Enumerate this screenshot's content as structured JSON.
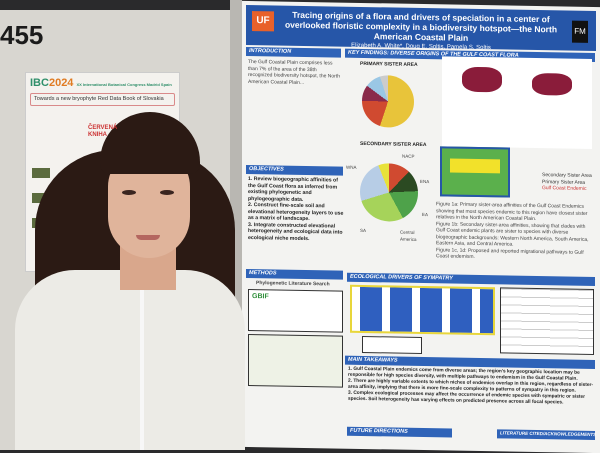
{
  "left_board": {
    "number": "455"
  },
  "ibc_poster": {
    "logo": "IBC",
    "year": "2024",
    "subtitle": "XX International Botanical Congress Madrid Spain",
    "title": "Towards a new bryophyte Red Data Book of Slovakia",
    "side_label": "ČERVENÁ KNIHA"
  },
  "poster": {
    "logo_left": "UF",
    "logo_right": "FM",
    "title": "Tracing origins of a flora and drivers of speciation in a center of overlooked floristic complexity in a biodiversity hotspot—the North American Coastal Plain",
    "authors": "Elizabeth A. White*, Doug E. Soltis, Pamela S. Soltis",
    "sections": {
      "introduction": "INTRODUCTION",
      "key_findings": "KEY FINDINGS: DIVERSE ORIGINS OF THE GULF COAST FLORA",
      "primary": "PRIMARY SISTER AREA",
      "secondary": "SECONDARY SISTER AREA",
      "objectives": "OBJECTIVES",
      "methods": "METHODS",
      "phylo_search": "Phylogenetic Literature Search",
      "ecological": "ECOLOGICAL DRIVERS OF SYMPATRY",
      "main_takeaways": "MAIN TAKEAWAYS",
      "future": "FUTURE DIRECTIONS",
      "literature": "LITERATURE CITED/ACKNOWLEDGEMENTS"
    },
    "intro_text": "The Gulf Coastal Plain comprises less than 7% of the area of the 38th recognized biodiversity hotspot, the North American Coastal Plain...",
    "objectives": [
      "1. Review biogeographic affinities of the Gulf Coast flora as inferred from existing phylogenetic and phylogeographic data.",
      "2. Construct fine-scale soil and elevational heterogeneity layers to use as a matrix of landscape.",
      "3. Integrate constructed elevational heterogeneity and ecological data into ecological niche models."
    ],
    "pie_labels": [
      "WNA",
      "NACP",
      "ENA",
      "EA",
      "Central America",
      "SA"
    ],
    "figure_captions": [
      "Figure 1a: Primary sister-area affinities of the Gulf Coast Endemics showing that most species endemic to this region have closest sister relatives in the North American Coastal Plain.",
      "Figure 1b: Secondary sister-area affinities, showing that clades with Gulf Coast endemic plants are sister to species with diverse biogeographic backgrounds: Western North America, South America, Eastern Asia, and Central America.",
      "Figure 1c, 1d: Proposed and reported migrational pathways to Gulf Coast endemism."
    ],
    "legend": [
      "Secondary Sister Area",
      "Primary Sister Area",
      "Gulf Coast Endemic"
    ],
    "takeaways": [
      "1. Gulf Coastal Plain endemics come from diverse areas; the region's key geographic location may be responsible for high species diversity, with multiple pathways to endemism in the Gulf Coastal Plain.",
      "2. There are highly variable extents to which niches of endemics overlap in this region, regardless of sister-area affinity, implying that there is more fine-scale complexity to patterns of sympatry in this region.",
      "3. Complex ecological processes may affect the occurrence of endemic species with sympatric or sister species. Soil heterogeneity has varying effects on predicted presence across all focal species."
    ],
    "gbif": "GBIF"
  },
  "colors": {
    "header_blue": "#2656a8",
    "uf_orange": "#e8612a"
  }
}
